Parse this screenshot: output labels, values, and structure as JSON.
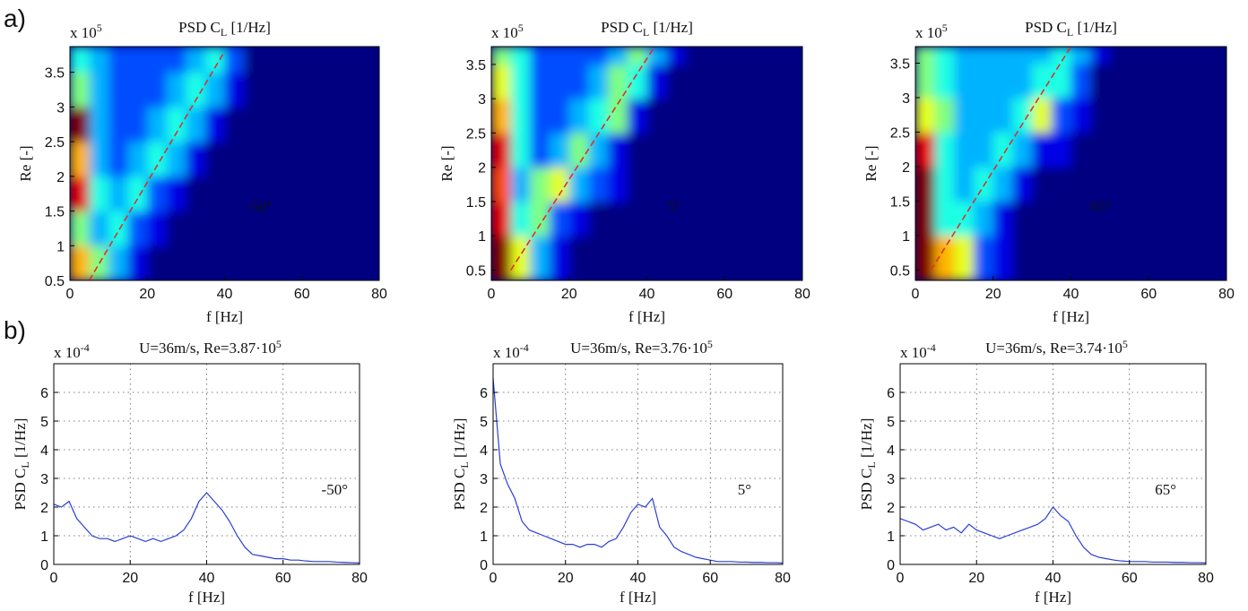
{
  "panel_labels": [
    "a)",
    "b)"
  ],
  "chart_data": [
    {
      "type": "heatmap",
      "title": [
        "PSD C",
        "L",
        " [1/Hz]"
      ],
      "y_multiplier": [
        "x 10",
        "5"
      ],
      "xlabel": "f [Hz]",
      "ylabel": [
        "Re [-]"
      ],
      "annotation": "-50°",
      "xlim": [
        0,
        80
      ],
      "ylim": [
        0.5,
        3.87
      ],
      "xticks": [
        0,
        20,
        40,
        60,
        80
      ],
      "yticks": [
        0.5,
        1,
        1.5,
        2,
        2.5,
        3,
        3.5
      ],
      "colormap": "jet",
      "zlim": [
        0,
        10
      ],
      "x_bins": [
        0,
        5,
        10,
        15,
        20,
        25,
        30,
        35,
        40,
        45,
        50
      ],
      "y_bins": [
        0.5,
        1,
        1.5,
        2,
        2.5,
        3,
        3.5,
        3.87
      ],
      "z": [
        [
          7,
          5,
          3,
          1,
          0,
          0,
          0,
          0,
          0,
          0
        ],
        [
          5,
          3,
          4,
          2,
          1,
          0,
          0,
          0,
          0,
          0
        ],
        [
          9,
          4,
          3,
          4,
          2,
          1,
          0,
          0,
          0,
          0
        ],
        [
          7,
          3,
          2,
          3,
          4,
          3,
          1,
          0,
          0,
          0
        ],
        [
          10,
          3,
          2,
          2,
          3,
          4,
          3,
          1,
          0,
          0
        ],
        [
          5,
          3,
          2,
          2,
          2,
          3,
          4,
          3,
          1,
          0
        ],
        [
          4,
          3,
          2,
          2,
          2,
          2,
          3,
          4,
          2,
          0
        ]
      ],
      "series": [
        {
          "color": "#e0302a",
          "x": [
            5,
            40
          ],
          "values": [
            0.5,
            3.8
          ]
        }
      ]
    },
    {
      "type": "heatmap",
      "title": [
        "PSD C",
        "L",
        " [1/Hz]"
      ],
      "y_multiplier": [
        "x 10",
        "5"
      ],
      "xlabel": "f [Hz]",
      "ylabel": [
        "Re [-]"
      ],
      "annotation": "5°",
      "xlim": [
        0,
        80
      ],
      "ylim": [
        0.35,
        3.76
      ],
      "xticks": [
        0,
        20,
        40,
        60,
        80
      ],
      "yticks": [
        0.5,
        1,
        1.5,
        2,
        2.5,
        3,
        3.5
      ],
      "colormap": "jet",
      "zlim": [
        0,
        10
      ],
      "x_bins": [
        0,
        5,
        10,
        15,
        20,
        25,
        30,
        35,
        40,
        45,
        50
      ],
      "y_bins": [
        0.35,
        1,
        1.5,
        2,
        2.5,
        3,
        3.5,
        3.76
      ],
      "z": [
        [
          10,
          6,
          3,
          1,
          0,
          0,
          0,
          0,
          0,
          0
        ],
        [
          9,
          4,
          5,
          2,
          1,
          0,
          0,
          0,
          0,
          0
        ],
        [
          8,
          3,
          5,
          6,
          3,
          2,
          1,
          0,
          0,
          0
        ],
        [
          9,
          4,
          2,
          3,
          5,
          3,
          1,
          0,
          0,
          0
        ],
        [
          7,
          4,
          2,
          2,
          3,
          4,
          5,
          1,
          0,
          0
        ],
        [
          6,
          4,
          2,
          2,
          2,
          3,
          5,
          4,
          1,
          0
        ],
        [
          5,
          4,
          2,
          2,
          2,
          2,
          3,
          5,
          3,
          1
        ]
      ],
      "series": [
        {
          "color": "#e0302a",
          "x": [
            5,
            42
          ],
          "values": [
            0.5,
            3.76
          ]
        }
      ]
    },
    {
      "type": "heatmap",
      "title": [
        "PSD C",
        "L",
        " [1/Hz]"
      ],
      "y_multiplier": [
        "x 10",
        "5"
      ],
      "xlabel": "f [Hz]",
      "ylabel": [
        "Re [-]"
      ],
      "annotation": "65°",
      "xlim": [
        0,
        80
      ],
      "ylim": [
        0.35,
        3.74
      ],
      "xticks": [
        0,
        20,
        40,
        60,
        80
      ],
      "yticks": [
        0.5,
        1,
        1.5,
        2,
        2.5,
        3,
        3.5
      ],
      "colormap": "jet",
      "zlim": [
        0,
        10
      ],
      "x_bins": [
        0,
        5,
        10,
        15,
        20,
        25,
        30,
        35,
        40,
        45,
        50
      ],
      "y_bins": [
        0.35,
        1,
        1.5,
        2,
        2.5,
        3,
        3.5,
        3.74
      ],
      "z": [
        [
          10,
          7,
          6,
          2,
          1,
          0,
          0,
          0,
          0,
          0
        ],
        [
          10,
          4,
          4,
          3,
          1,
          0,
          0,
          0,
          0,
          0
        ],
        [
          10,
          4,
          3,
          4,
          3,
          1,
          0,
          0,
          0,
          0
        ],
        [
          9,
          4,
          3,
          3,
          4,
          3,
          1,
          1,
          0,
          0
        ],
        [
          6,
          5,
          3,
          3,
          3,
          4,
          6,
          2,
          1,
          0
        ],
        [
          5,
          4,
          3,
          3,
          3,
          3,
          4,
          4,
          2,
          0
        ],
        [
          5,
          4,
          3,
          3,
          3,
          3,
          3,
          4,
          3,
          1
        ]
      ],
      "series": [
        {
          "color": "#e0302a",
          "x": [
            4,
            40
          ],
          "values": [
            0.5,
            3.74
          ]
        }
      ]
    },
    {
      "type": "line",
      "title": [
        "U=36m/s, Re=3.87·10",
        "5"
      ],
      "y_multiplier": [
        "x 10",
        "-4"
      ],
      "xlabel": "f [Hz]",
      "ylabel": [
        "PSD C",
        "L",
        " [1/Hz]"
      ],
      "annotation": "-50°",
      "xlim": [
        0,
        80
      ],
      "ylim": [
        0,
        7
      ],
      "xticks": [
        0,
        20,
        40,
        60,
        80
      ],
      "yticks": [
        0,
        1,
        2,
        3,
        4,
        5,
        6
      ],
      "grid": true,
      "x": [
        0,
        2,
        4,
        6,
        8,
        10,
        12,
        14,
        16,
        18,
        20,
        22,
        24,
        26,
        28,
        30,
        32,
        34,
        36,
        38,
        40,
        42,
        44,
        46,
        48,
        50,
        52,
        54,
        56,
        58,
        60,
        62,
        64,
        66,
        68,
        70,
        72,
        74,
        76,
        78,
        80
      ],
      "series": [
        {
          "color": "#2a3fd6",
          "values": [
            2.1,
            2.0,
            2.2,
            1.6,
            1.3,
            1.0,
            0.9,
            0.9,
            0.8,
            0.9,
            1.0,
            0.9,
            0.8,
            0.9,
            0.8,
            0.9,
            1.0,
            1.2,
            1.6,
            2.2,
            2.5,
            2.2,
            1.9,
            1.5,
            1.0,
            0.6,
            0.35,
            0.3,
            0.25,
            0.2,
            0.2,
            0.15,
            0.15,
            0.12,
            0.1,
            0.1,
            0.1,
            0.08,
            0.07,
            0.06,
            0.05
          ]
        }
      ]
    },
    {
      "type": "line",
      "title": [
        "U=36m/s, Re=3.76·10",
        "5"
      ],
      "y_multiplier": [
        "x 10",
        "-4"
      ],
      "xlabel": "f [Hz]",
      "ylabel": [
        "PSD C",
        "L",
        " [1/Hz]"
      ],
      "annotation": "5°",
      "xlim": [
        0,
        80
      ],
      "ylim": [
        0,
        7
      ],
      "xticks": [
        0,
        20,
        40,
        60,
        80
      ],
      "yticks": [
        0,
        1,
        2,
        3,
        4,
        5,
        6
      ],
      "grid": true,
      "x": [
        0,
        2,
        4,
        6,
        8,
        10,
        12,
        14,
        16,
        18,
        20,
        22,
        24,
        26,
        28,
        30,
        32,
        34,
        36,
        38,
        40,
        42,
        44,
        46,
        48,
        50,
        52,
        54,
        56,
        58,
        60,
        62,
        64,
        66,
        68,
        70,
        72,
        74,
        76,
        78,
        80
      ],
      "series": [
        {
          "color": "#2a3fd6",
          "values": [
            6.5,
            3.5,
            2.8,
            2.3,
            1.5,
            1.2,
            1.1,
            1.0,
            0.9,
            0.8,
            0.7,
            0.7,
            0.6,
            0.7,
            0.7,
            0.6,
            0.8,
            0.9,
            1.3,
            1.8,
            2.1,
            2.0,
            2.3,
            1.3,
            1.0,
            0.6,
            0.45,
            0.35,
            0.25,
            0.2,
            0.15,
            0.1,
            0.1,
            0.1,
            0.08,
            0.08,
            0.07,
            0.07,
            0.06,
            0.06,
            0.05
          ]
        }
      ]
    },
    {
      "type": "line",
      "title": [
        "U=36m/s, Re=3.74·10",
        "5"
      ],
      "y_multiplier": [
        "x 10",
        "-4"
      ],
      "xlabel": "f [Hz]",
      "ylabel": [
        "PSD C",
        "L",
        " [1/Hz]"
      ],
      "annotation": "65°",
      "xlim": [
        0,
        80
      ],
      "ylim": [
        0,
        7
      ],
      "xticks": [
        0,
        20,
        40,
        60,
        80
      ],
      "yticks": [
        0,
        1,
        2,
        3,
        4,
        5,
        6
      ],
      "grid": true,
      "x": [
        0,
        2,
        4,
        6,
        8,
        10,
        12,
        14,
        16,
        18,
        20,
        22,
        24,
        26,
        28,
        30,
        32,
        34,
        36,
        38,
        40,
        42,
        44,
        46,
        48,
        50,
        52,
        54,
        56,
        58,
        60,
        62,
        64,
        66,
        68,
        70,
        72,
        74,
        76,
        78,
        80
      ],
      "series": [
        {
          "color": "#2a3fd6",
          "values": [
            1.6,
            1.5,
            1.4,
            1.2,
            1.3,
            1.4,
            1.2,
            1.3,
            1.1,
            1.4,
            1.2,
            1.1,
            1.0,
            0.9,
            1.0,
            1.1,
            1.2,
            1.3,
            1.4,
            1.6,
            2.0,
            1.7,
            1.5,
            1.0,
            0.6,
            0.35,
            0.25,
            0.2,
            0.15,
            0.12,
            0.1,
            0.1,
            0.1,
            0.08,
            0.08,
            0.08,
            0.07,
            0.07,
            0.06,
            0.06,
            0.05
          ]
        }
      ]
    }
  ]
}
